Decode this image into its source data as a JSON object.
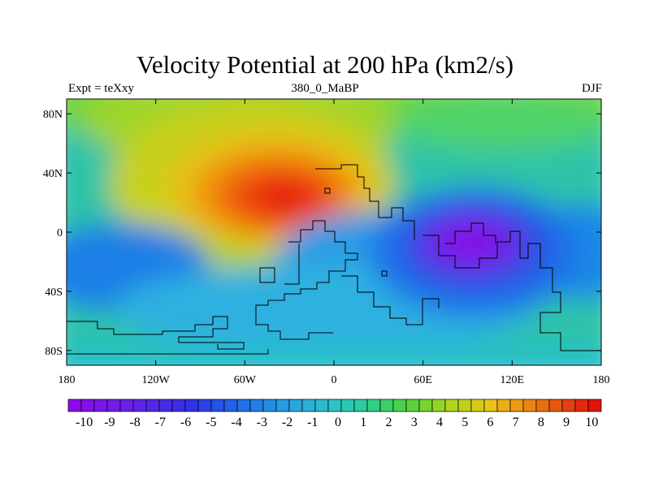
{
  "chart_data": {
    "type": "heatmap",
    "title": "Velocity Potential at 200 hPa (km2/s)",
    "subtitle_left": "Expt = teXxy",
    "subtitle_center": "380_0_MaBP",
    "subtitle_right": "DJF",
    "x_range": [
      -180,
      180
    ],
    "y_range": [
      -90,
      90
    ],
    "x_ticks": [
      {
        "value": -180,
        "label": "180"
      },
      {
        "value": -120,
        "label": "120W"
      },
      {
        "value": -60,
        "label": "60W"
      },
      {
        "value": 0,
        "label": "0"
      },
      {
        "value": 60,
        "label": "60E"
      },
      {
        "value": 120,
        "label": "120E"
      },
      {
        "value": 180,
        "label": "180"
      }
    ],
    "y_ticks": [
      {
        "value": 80,
        "label": "80N"
      },
      {
        "value": 40,
        "label": "40N"
      },
      {
        "value": 0,
        "label": "0"
      },
      {
        "value": -40,
        "label": "40S"
      },
      {
        "value": -80,
        "label": "80S"
      }
    ],
    "colorbar": {
      "min": -10,
      "max": 10,
      "step": 0.5,
      "labels": [
        "-10",
        "-9",
        "-8",
        "-7",
        "-6",
        "-5",
        "-4",
        "-3",
        "-2",
        "-1",
        "0",
        "1",
        "2",
        "3",
        "4",
        "5",
        "6",
        "7",
        "8",
        "9",
        "10"
      ]
    },
    "features": [
      {
        "name": "maximum",
        "lon": -32,
        "lat": 24,
        "value": 10
      },
      {
        "name": "minimum",
        "lon": 88,
        "lat": -10,
        "value": -9.5
      }
    ]
  }
}
